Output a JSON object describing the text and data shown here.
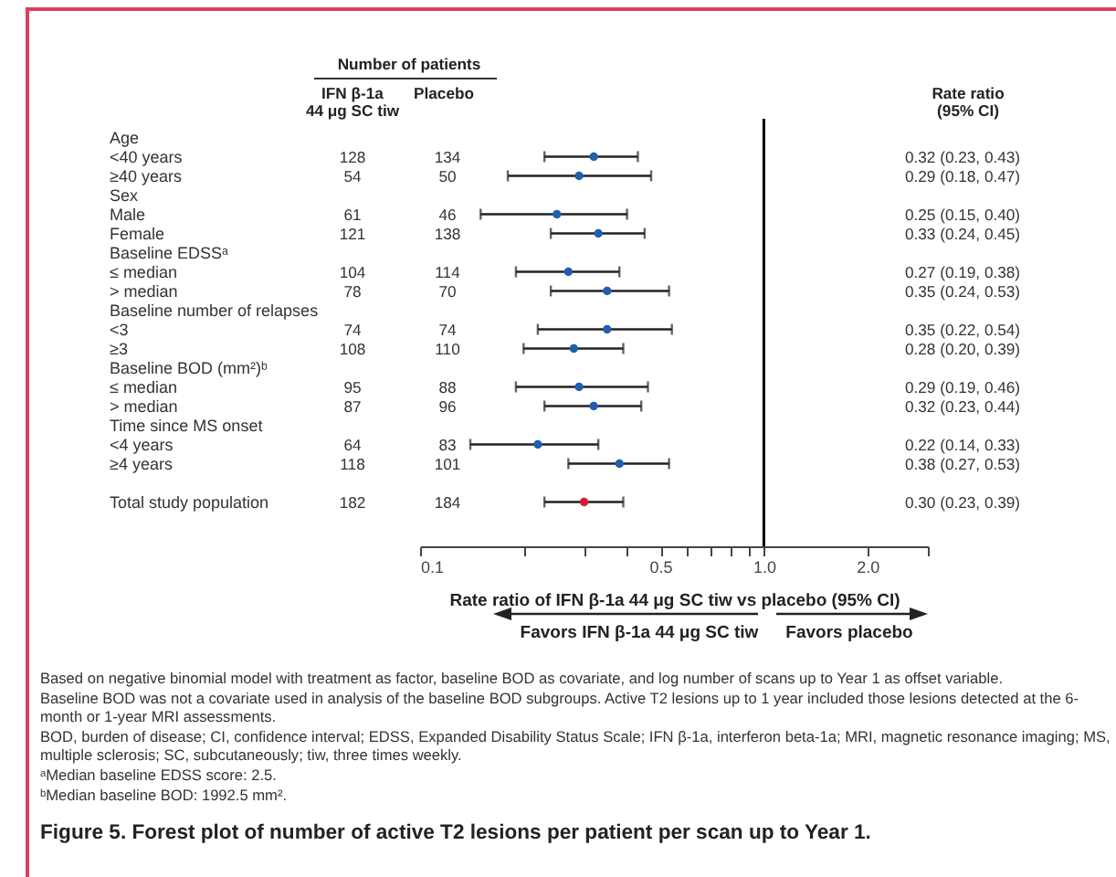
{
  "chart_data": {
    "type": "scatter",
    "title": "Figure 5. Forest plot of number of active T2 lesions per patient per scan up to Year 1.",
    "xlabel": "Rate ratio of IFN β-1a 44 μg SC tiw vs placebo (95% CI)",
    "orientation": "horizontal",
    "log": "x",
    "marker": "circle",
    "categories": [
      "Age",
      "<40 years",
      "≥40 years",
      "Sex",
      "Male",
      "Female",
      "Baseline EDSSᵃ",
      "≤ median",
      "> median",
      "Baseline number of relapses",
      "<3",
      "≥3",
      "Baseline BOD (mm²)ᵇ",
      "≤ median",
      "> median",
      "Time since MS onset",
      "<4 years",
      "≥4 years",
      null,
      "Total study population"
    ],
    "values": [
      null,
      0.32,
      0.29,
      null,
      0.25,
      0.33,
      null,
      0.27,
      0.35,
      null,
      0.35,
      0.28,
      null,
      0.29,
      0.32,
      null,
      0.22,
      0.38,
      null,
      0.3
    ],
    "errors": [
      null,
      [
        0.23,
        0.43
      ],
      [
        0.18,
        0.47
      ],
      null,
      [
        0.15,
        0.4
      ],
      [
        0.24,
        0.45
      ],
      null,
      [
        0.19,
        0.38
      ],
      [
        0.24,
        0.53
      ],
      null,
      [
        0.22,
        0.54
      ],
      [
        0.2,
        0.39
      ],
      null,
      [
        0.19,
        0.46
      ],
      [
        0.23,
        0.44
      ],
      null,
      [
        0.14,
        0.33
      ],
      [
        0.27,
        0.53
      ],
      null,
      [
        0.23,
        0.39
      ]
    ],
    "value_labels": [
      null,
      "0.32 (0.23, 0.43)",
      "0.29 (0.18, 0.47)",
      null,
      "0.25 (0.15, 0.40)",
      "0.33 (0.24, 0.45)",
      null,
      "0.27 (0.19, 0.38)",
      "0.35 (0.24, 0.53)",
      null,
      "0.35 (0.22, 0.54)",
      "0.28 (0.20, 0.39)",
      null,
      "0.29 (0.19, 0.46)",
      "0.32 (0.23, 0.44)",
      null,
      "0.22 (0.14, 0.33)",
      "0.38 (0.27, 0.53)",
      null,
      "0.30 (0.23, 0.39)"
    ],
    "colors": [
      null,
      "#1f5fae",
      "#1f5fae",
      null,
      "#1f5fae",
      "#1f5fae",
      null,
      "#1f5fae",
      "#1f5fae",
      null,
      "#1f5fae",
      "#1f5fae",
      null,
      "#1f5fae",
      "#1f5fae",
      null,
      "#1f5fae",
      "#1f5fae",
      null,
      "#d7193a"
    ],
    "xlim": [
      0.1,
      3
    ],
    "xticks": [
      0.1,
      {
        "value": 0.2,
        "label": null
      },
      {
        "value": 0.3,
        "label": null
      },
      {
        "value": 0.4,
        "label": null
      },
      0.5,
      {
        "value": 0.6,
        "label": null
      },
      {
        "value": 0.7,
        "label": null
      },
      {
        "value": 0.8,
        "label": null
      },
      {
        "value": 0.9,
        "label": null
      },
      {
        "value": 1,
        "label": "1.0"
      },
      {
        "value": 2,
        "label": "2.0"
      },
      {
        "value": 3,
        "label": null
      }
    ],
    "ref_lines": [
      {
        "axis": "x",
        "value": 1,
        "color": "#000000"
      }
    ],
    "annotations": [
      "Number of patients",
      "IFN β-1a\n44 μg SC tiw",
      "Placebo",
      "Rate ratio\n(95% CI)",
      "Favors IFN β-1a 44 μg SC tiw",
      "Favors placebo",
      "128",
      "134",
      "54",
      "50",
      "61",
      "46",
      "121",
      "138",
      "104",
      "114",
      "78",
      "70",
      "74",
      "74",
      "108",
      "110",
      "95",
      "88",
      "87",
      "96",
      "64",
      "83",
      "118",
      "101",
      "182",
      "184",
      "Based on negative binomial model with treatment as factor, baseline BOD as covariate, and log number of scans up to Year 1 as offset variable.",
      "Baseline BOD was not a covariate used in analysis of the baseline BOD subgroups. Active T2 lesions up to 1 year included those lesions detected at the 6-month or 1-year MRI assessments.",
      "BOD, burden of disease; CI, confidence interval; EDSS, Expanded Disability Status Scale; IFN β-1a, interferon beta-1a; MRI, magnetic resonance imaging; MS, multiple sclerosis; SC, subcutaneously; tiw, three times weekly.",
      "ᵃMedian baseline EDSS score: 2.5.",
      "ᵇMedian baseline BOD: 1992.5 mm²."
    ]
  }
}
